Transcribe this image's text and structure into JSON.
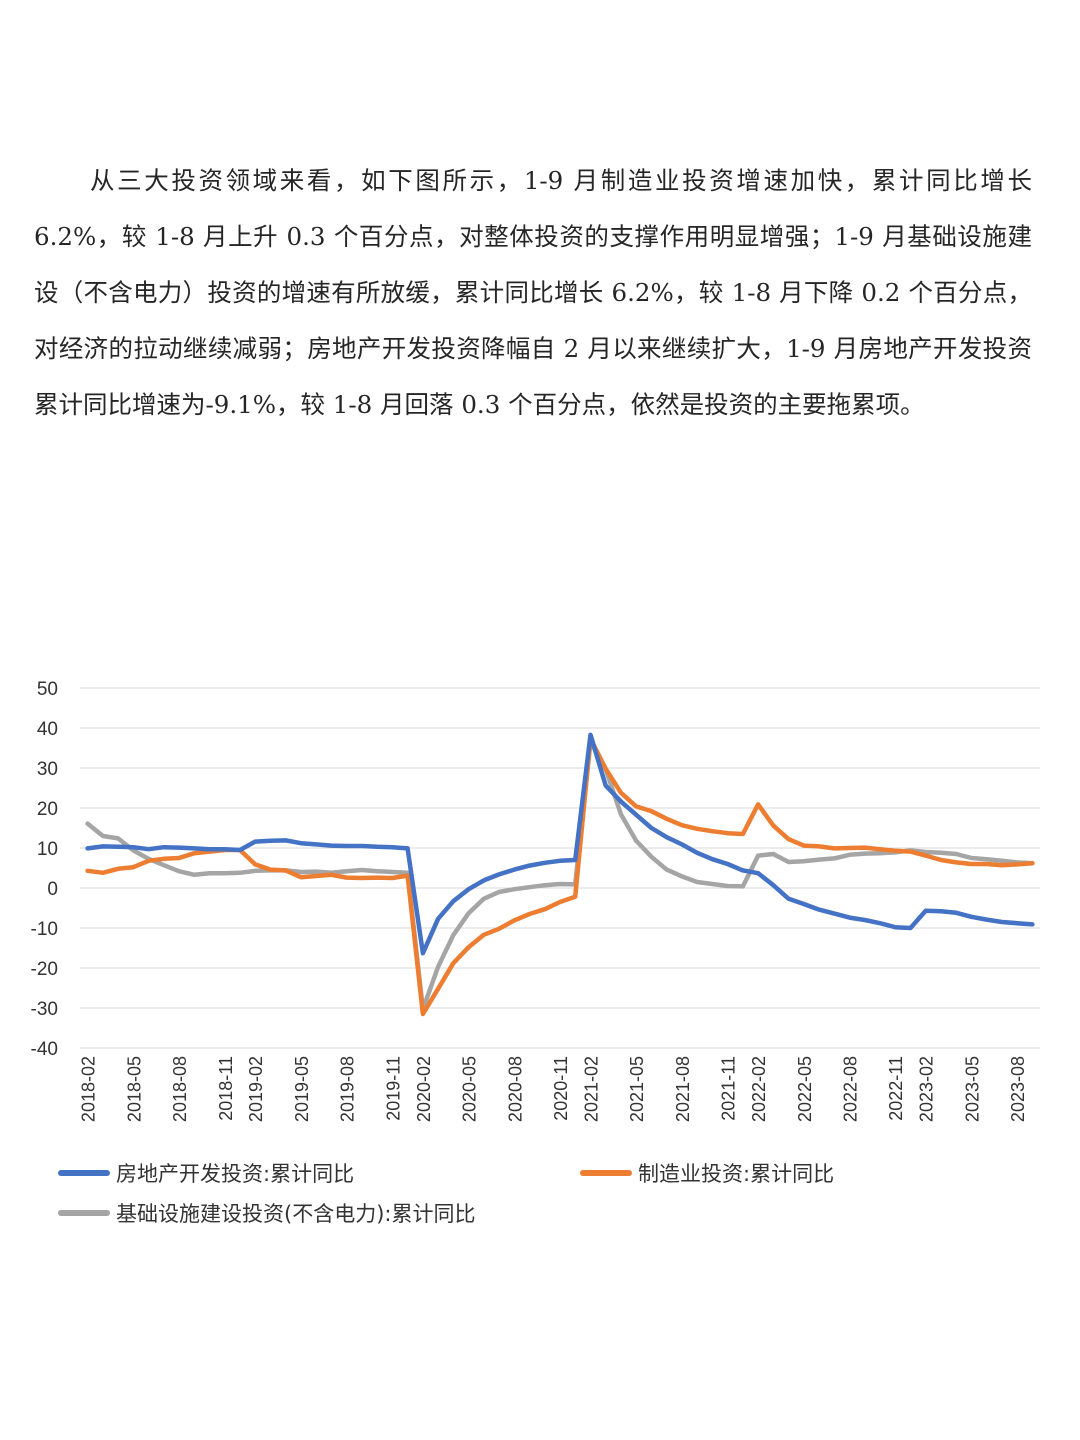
{
  "paragraph": {
    "text": "从三大投资领域来看，如下图所示，1-9 月制造业投资增速加快，累计同比增长 6.2%，较 1-8 月上升 0.3 个百分点，对整体投资的支撑作用明显增强；1-9 月基础设施建设（不含电力）投资的增速有所放缓，累计同比增长 6.2%，较 1-8 月下降 0.2 个百分点，对经济的拉动继续减弱；房地产开发投资降幅自 2 月以来继续扩大，1-9 月房地产开发投资累计同比增速为-9.1%，较 1-8 月回落 0.3 个百分点，依然是投资的主要拖累项。"
  },
  "chart_data": {
    "type": "line",
    "x": [
      "2018-02",
      "2018-03",
      "2018-04",
      "2018-05",
      "2018-06",
      "2018-07",
      "2018-08",
      "2018-09",
      "2018-10",
      "2018-11",
      "2018-12",
      "2019-02",
      "2019-03",
      "2019-04",
      "2019-05",
      "2019-06",
      "2019-07",
      "2019-08",
      "2019-09",
      "2019-10",
      "2019-11",
      "2019-12",
      "2020-02",
      "2020-03",
      "2020-04",
      "2020-05",
      "2020-06",
      "2020-07",
      "2020-08",
      "2020-09",
      "2020-10",
      "2020-11",
      "2020-12",
      "2021-02",
      "2021-03",
      "2021-04",
      "2021-05",
      "2021-06",
      "2021-07",
      "2021-08",
      "2021-09",
      "2021-10",
      "2021-11",
      "2021-12",
      "2022-02",
      "2022-03",
      "2022-04",
      "2022-05",
      "2022-06",
      "2022-07",
      "2022-08",
      "2022-09",
      "2022-10",
      "2022-11",
      "2022-12",
      "2023-02",
      "2023-03",
      "2023-04",
      "2023-05",
      "2023-06",
      "2023-07",
      "2023-08",
      "2023-09"
    ],
    "x_tick_labels": [
      "2018-02",
      "2018-05",
      "2018-08",
      "2018-11",
      "2019-02",
      "2019-05",
      "2019-08",
      "2019-11",
      "2020-02",
      "2020-05",
      "2020-08",
      "2020-11",
      "2021-02",
      "2021-05",
      "2021-08",
      "2021-11",
      "2022-02",
      "2022-05",
      "2022-08",
      "2022-11",
      "2023-02",
      "2023-05",
      "2023-08"
    ],
    "y_ticks": [
      50,
      40,
      30,
      20,
      10,
      0,
      -10,
      -20,
      -30,
      -40
    ],
    "ylim": [
      -40,
      50
    ],
    "grid": "horizontal",
    "legend_position": "bottom",
    "series": [
      {
        "name": "房地产开发投资:累计同比",
        "color": "#4472C4",
        "values": [
          9.9,
          10.4,
          10.3,
          10.2,
          9.7,
          10.2,
          10.1,
          9.9,
          9.7,
          9.7,
          9.5,
          11.6,
          11.8,
          11.9,
          11.2,
          10.9,
          10.6,
          10.5,
          10.5,
          10.3,
          10.2,
          9.9,
          -16.3,
          -7.7,
          -3.3,
          -0.3,
          1.9,
          3.4,
          4.6,
          5.6,
          6.3,
          6.8,
          7.0,
          38.3,
          25.6,
          21.6,
          18.3,
          15.0,
          12.7,
          10.9,
          8.8,
          7.2,
          6.0,
          4.4,
          3.7,
          0.7,
          -2.7,
          -4.0,
          -5.4,
          -6.4,
          -7.4,
          -8.0,
          -8.8,
          -9.8,
          -10.0,
          -5.7,
          -5.8,
          -6.2,
          -7.2,
          -7.9,
          -8.5,
          -8.8,
          -9.1
        ]
      },
      {
        "name": "制造业投资:累计同比",
        "color": "#ED7D31",
        "values": [
          4.3,
          3.8,
          4.8,
          5.2,
          6.8,
          7.3,
          7.5,
          8.7,
          9.1,
          9.5,
          9.5,
          5.9,
          4.6,
          4.4,
          2.7,
          3.0,
          3.3,
          2.6,
          2.5,
          2.6,
          2.5,
          3.1,
          -31.5,
          -25.2,
          -18.8,
          -14.8,
          -11.7,
          -10.2,
          -8.1,
          -6.5,
          -5.3,
          -3.5,
          -2.2,
          37.3,
          29.8,
          23.8,
          20.4,
          19.2,
          17.3,
          15.7,
          14.8,
          14.2,
          13.7,
          13.5,
          20.9,
          15.6,
          12.2,
          10.6,
          10.4,
          9.9,
          10.0,
          10.1,
          9.7,
          9.3,
          9.1,
          8.1,
          7.0,
          6.4,
          6.0,
          6.0,
          5.7,
          5.9,
          6.2
        ]
      },
      {
        "name": "基础设施建设投资(不含电力):累计同比",
        "color": "#A5A5A5",
        "values": [
          16.1,
          13.0,
          12.4,
          9.4,
          7.3,
          5.7,
          4.2,
          3.3,
          3.7,
          3.7,
          3.8,
          4.3,
          4.4,
          4.4,
          4.0,
          4.1,
          3.8,
          4.2,
          4.5,
          4.2,
          4.0,
          3.8,
          -30.3,
          -19.7,
          -11.8,
          -6.3,
          -2.7,
          -1.0,
          -0.3,
          0.2,
          0.7,
          1.0,
          0.9,
          36.6,
          29.7,
          18.4,
          11.8,
          7.8,
          4.6,
          2.9,
          1.5,
          1.0,
          0.5,
          0.4,
          8.1,
          8.5,
          6.5,
          6.7,
          7.1,
          7.4,
          8.3,
          8.6,
          8.7,
          8.9,
          9.4,
          9.0,
          8.8,
          8.5,
          7.5,
          7.2,
          6.8,
          6.4,
          6.2
        ]
      }
    ]
  }
}
